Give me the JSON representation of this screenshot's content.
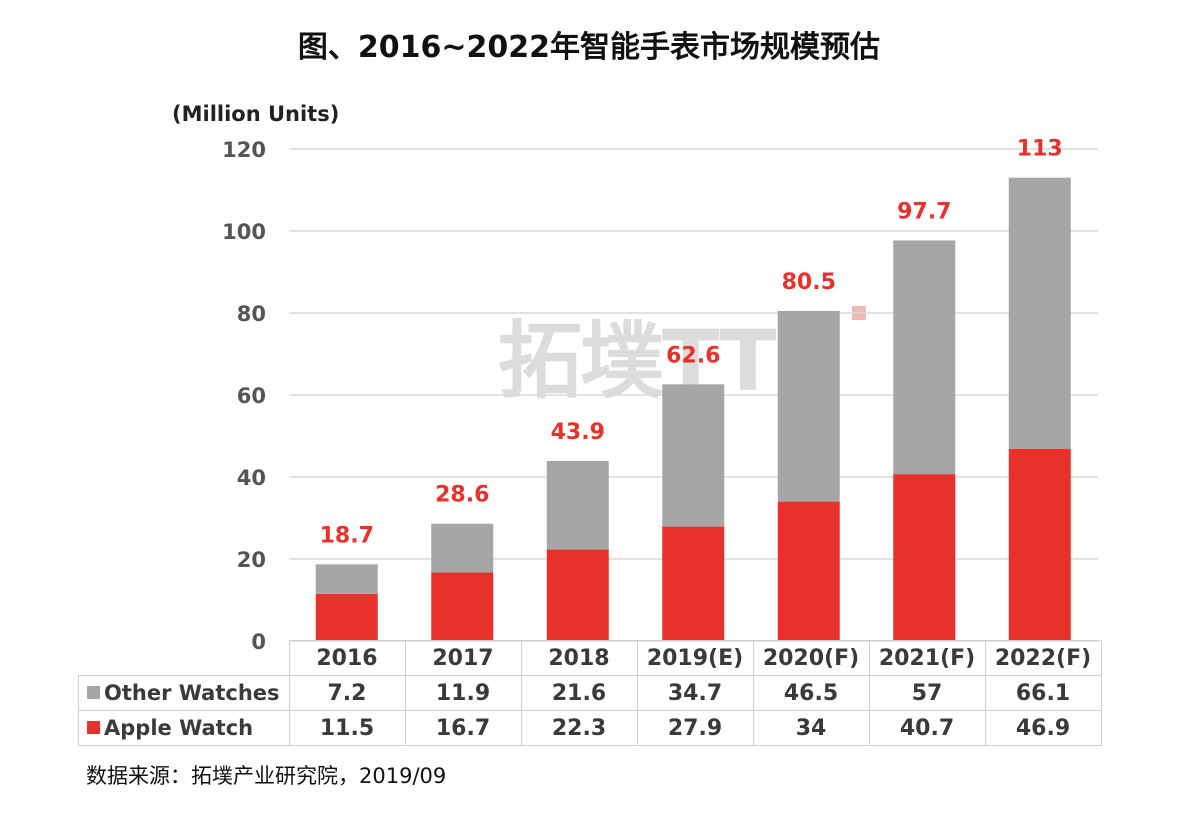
{
  "title": "图、2016~2022年智能手表市场规模预估",
  "source": "数据来源：拓墣产业研究院，2019/09",
  "watermark": "拓墣TTRi",
  "colors": {
    "apple": "#e8312a",
    "other": "#a6a6a6",
    "total_label": "#e8312a",
    "grid": "#d9d9d9"
  },
  "chart_data": {
    "type": "bar",
    "stacked": true,
    "categories": [
      "2016",
      "2017",
      "2018",
      "2019(E)",
      "2020(F)",
      "2021(F)",
      "2022(F)"
    ],
    "series": [
      {
        "name": "Apple Watch",
        "values": [
          11.5,
          16.7,
          22.3,
          27.9,
          34,
          40.7,
          46.9
        ]
      },
      {
        "name": "Other Watches",
        "values": [
          7.2,
          11.9,
          21.6,
          34.7,
          46.5,
          57,
          66.1
        ]
      }
    ],
    "totals": [
      "18.7",
      "28.6",
      "43.9",
      "62.6",
      "80.5",
      "97.7",
      "113"
    ],
    "ylabel": "(Million Units)",
    "yticks": [
      0,
      20,
      40,
      60,
      80,
      100,
      120
    ],
    "ylim": [
      0,
      120
    ],
    "grid": true,
    "legend": "data-table"
  },
  "table": {
    "rows": [
      {
        "label": "Other Watches",
        "values": [
          "7.2",
          "11.9",
          "21.6",
          "34.7",
          "46.5",
          "57",
          "66.1"
        ]
      },
      {
        "label": "Apple Watch",
        "values": [
          "11.5",
          "16.7",
          "22.3",
          "27.9",
          "34",
          "40.7",
          "46.9"
        ]
      }
    ]
  }
}
